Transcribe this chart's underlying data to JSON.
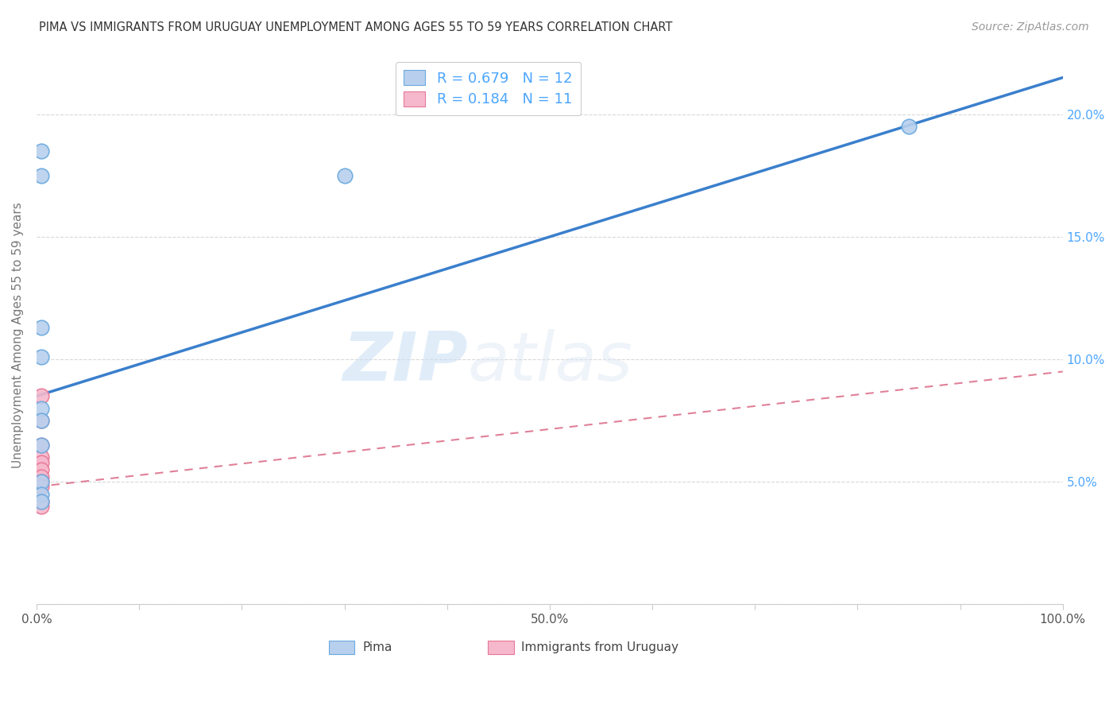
{
  "title": "PIMA VS IMMIGRANTS FROM URUGUAY UNEMPLOYMENT AMONG AGES 55 TO 59 YEARS CORRELATION CHART",
  "source": "Source: ZipAtlas.com",
  "ylabel": "Unemployment Among Ages 55 to 59 years",
  "xlim": [
    0,
    1.0
  ],
  "ylim": [
    0,
    0.22
  ],
  "xtick_positions": [
    0.0,
    0.1,
    0.2,
    0.3,
    0.4,
    0.5,
    0.6,
    0.7,
    0.8,
    0.9,
    1.0
  ],
  "xticklabels": [
    "0.0%",
    "",
    "",
    "",
    "",
    "50.0%",
    "",
    "",
    "",
    "",
    "100.0%"
  ],
  "ytick_positions": [
    0.0,
    0.05,
    0.1,
    0.15,
    0.2
  ],
  "yticklabels": [
    "",
    "5.0%",
    "10.0%",
    "15.0%",
    "20.0%"
  ],
  "pima_x": [
    0.005,
    0.005,
    0.005,
    0.005,
    0.005,
    0.005,
    0.005,
    0.005,
    0.005,
    0.005,
    0.3,
    0.85
  ],
  "pima_y": [
    0.185,
    0.175,
    0.113,
    0.101,
    0.08,
    0.075,
    0.065,
    0.05,
    0.045,
    0.042,
    0.175,
    0.195
  ],
  "uruguay_x": [
    0.005,
    0.005,
    0.005,
    0.005,
    0.005,
    0.005,
    0.005,
    0.005,
    0.005,
    0.005,
    0.005
  ],
  "uruguay_y": [
    0.085,
    0.075,
    0.065,
    0.06,
    0.058,
    0.055,
    0.052,
    0.05,
    0.048,
    0.042,
    0.04
  ],
  "pima_line_x0": 0.0,
  "pima_line_y0": 0.085,
  "pima_line_x1": 1.0,
  "pima_line_y1": 0.215,
  "uruguay_line_x0": 0.0,
  "uruguay_line_y0": 0.048,
  "uruguay_line_x1": 1.0,
  "uruguay_line_y1": 0.095,
  "pima_R": 0.679,
  "pima_N": 12,
  "uruguay_R": 0.184,
  "uruguay_N": 11,
  "pima_fill_color": "#b8d0ed",
  "pima_edge_color": "#6aaae0",
  "pima_line_color": "#3a7fcc",
  "uruguay_fill_color": "#f5b8cc",
  "uruguay_edge_color": "#e87898",
  "uruguay_line_color": "#e08098",
  "legend_label_1": "Pima",
  "legend_label_2": "Immigrants from Uruguay",
  "watermark_zip": "ZIP",
  "watermark_atlas": "atlas",
  "background_color": "#ffffff",
  "grid_color": "#d8d8d8",
  "title_color": "#333333",
  "source_color": "#999999",
  "axis_label_color": "#777777",
  "tick_color": "#555555",
  "right_tick_color": "#4da6ff"
}
